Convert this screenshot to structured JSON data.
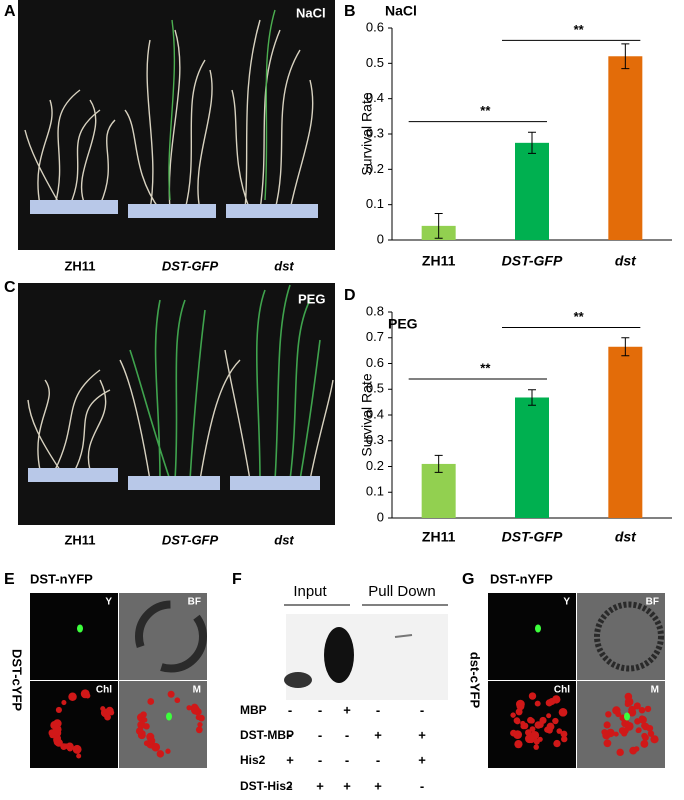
{
  "panel_labels": [
    "A",
    "B",
    "C",
    "D",
    "E",
    "F",
    "G"
  ],
  "photo_a": {
    "tag": "NaCl",
    "samples": [
      "ZH11",
      "DST-GFP",
      "dst"
    ]
  },
  "photo_c": {
    "tag": "PEG",
    "samples": [
      "ZH11",
      "DST-GFP",
      "dst"
    ]
  },
  "chart_data": [
    {
      "type": "bar",
      "title": "NaCl",
      "y_label": "Survival Rate",
      "categories": [
        "ZH11",
        "DST-GFP",
        "dst"
      ],
      "values": [
        0.04,
        0.275,
        0.52
      ],
      "errors": [
        0.035,
        0.03,
        0.035
      ],
      "colors": [
        "#92d050",
        "#00b050",
        "#e36c09"
      ],
      "ylim": [
        0,
        0.6
      ],
      "yticks": [
        0,
        0.1,
        0.2,
        0.3,
        0.4,
        0.5,
        0.6
      ],
      "annotations": [
        {
          "text": "**",
          "y": 0.335
        },
        {
          "text": "**",
          "y": 0.565
        }
      ]
    },
    {
      "type": "bar",
      "title": "PEG",
      "y_label": "Survival Rate",
      "categories": [
        "ZH11",
        "DST-GFP",
        "dst"
      ],
      "values": [
        0.21,
        0.468,
        0.665
      ],
      "errors": [
        0.033,
        0.03,
        0.035
      ],
      "colors": [
        "#92d050",
        "#00b050",
        "#e36c09"
      ],
      "ylim": [
        0,
        0.8
      ],
      "yticks": [
        0,
        0.1,
        0.2,
        0.3,
        0.4,
        0.5,
        0.6,
        0.7,
        0.8
      ],
      "annotations": [
        {
          "text": "**",
          "y": 0.54
        },
        {
          "text": "**",
          "y": 0.74
        }
      ]
    }
  ],
  "panel_e": {
    "title": "DST-nYFP",
    "side": "DST-cYFP",
    "channels": [
      "Y",
      "BF",
      "Chl",
      "M"
    ]
  },
  "panel_f": {
    "headers": [
      "Input",
      "Pull Down"
    ],
    "rows": [
      [
        "MBP",
        "-",
        "-",
        "+",
        "-",
        "-"
      ],
      [
        "DST-MBP",
        "-",
        "-",
        "-",
        "+",
        "+"
      ],
      [
        "His2",
        "+",
        "-",
        "-",
        "-",
        "+"
      ],
      [
        "DST-His2",
        "-",
        "+",
        "+",
        "+",
        "-"
      ]
    ]
  },
  "panel_g": {
    "title": "DST-nYFP",
    "side": "dst-cYFP",
    "channels": [
      "Y",
      "BF",
      "Chl",
      "M"
    ]
  }
}
